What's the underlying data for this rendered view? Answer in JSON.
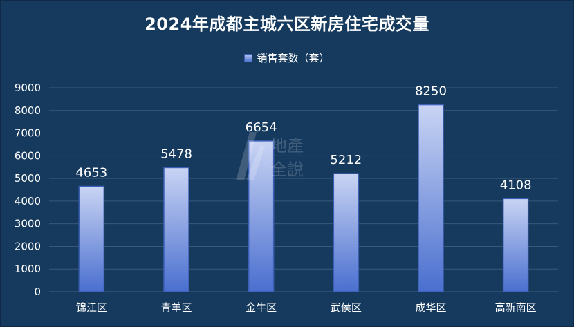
{
  "chart_data": {
    "type": "bar",
    "title": "2024年成都主城六区新房住宅成交量",
    "legend": [
      "销售套数（套）"
    ],
    "categories": [
      "锦江区",
      "青羊区",
      "金牛区",
      "武侯区",
      "成华区",
      "高新南区"
    ],
    "series": [
      {
        "name": "销售套数（套）",
        "values": [
          4653,
          5478,
          6654,
          5212,
          8250,
          4108
        ]
      }
    ],
    "yticks": [
      "0",
      "1000",
      "2000",
      "3000",
      "4000",
      "5000",
      "6000",
      "7000",
      "8000",
      "9000"
    ],
    "ylim": [
      0,
      9000
    ],
    "grid": true,
    "legend_position": "top-center",
    "colors": {
      "background": "#163a5e",
      "bar_top": "#c9d4f4",
      "bar_bottom": "#4a6fcf",
      "bar_border": "#3c5fb6",
      "grid": "#3a5878",
      "text": "#ffffff"
    }
  },
  "watermark": {
    "line1": "地產",
    "line2": "全說"
  }
}
